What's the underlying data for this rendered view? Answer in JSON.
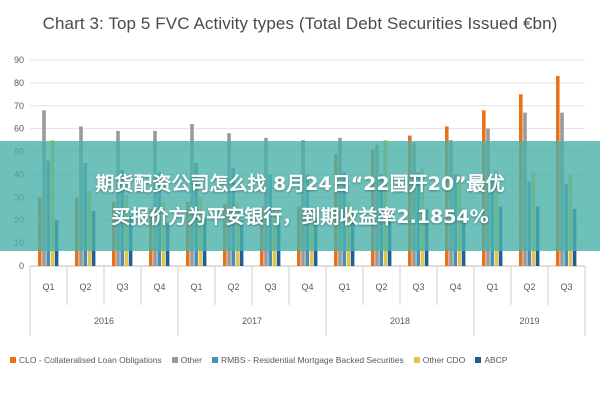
{
  "chart_data": {
    "type": "bar",
    "title": "Chart 3: Top 5 FVC Activity types (Total Debt Securities Issued €bn)",
    "ylim": [
      0,
      90
    ],
    "yticks": [
      0,
      10,
      20,
      30,
      40,
      50,
      60,
      70,
      80,
      90
    ],
    "grid": true,
    "legend_position": "bottom",
    "categories": [
      "Q1",
      "Q2",
      "Q3",
      "Q4",
      "Q1",
      "Q2",
      "Q3",
      "Q4",
      "Q1",
      "Q2",
      "Q3",
      "Q4",
      "Q1",
      "Q2",
      "Q3"
    ],
    "years": [
      {
        "label": "2016",
        "count": 4
      },
      {
        "label": "2017",
        "count": 4
      },
      {
        "label": "2018",
        "count": 4
      },
      {
        "label": "2019",
        "count": 3
      }
    ],
    "series": [
      {
        "name": "CLO - Collateralised Loan Obligations",
        "color": "#e8711c",
        "values": [
          30,
          30,
          28,
          25,
          28,
          27,
          26,
          26,
          49,
          51,
          57,
          61,
          68,
          75,
          83
        ]
      },
      {
        "name": "Other",
        "color": "#9a9a9a",
        "values": [
          68,
          61,
          59,
          59,
          62,
          58,
          56,
          55,
          56,
          53,
          54,
          55,
          60,
          67,
          67
        ]
      },
      {
        "name": "RMBS - Residential Mortgage Backed Securities",
        "color": "#4a8fb3",
        "values": [
          46,
          45,
          42,
          41,
          45,
          43,
          40,
          40,
          41,
          40,
          41,
          40,
          38,
          37,
          36
        ]
      },
      {
        "name": "Other CDO",
        "color": "#e3c54d",
        "values": [
          55,
          33,
          31,
          28,
          30,
          27,
          26,
          26,
          28,
          55,
          43,
          40,
          42,
          41,
          40
        ]
      },
      {
        "name": "ABCP",
        "color": "#1f5f95",
        "values": [
          20,
          24,
          22,
          19,
          21,
          20,
          19,
          21,
          23,
          24,
          25,
          25,
          26,
          26,
          25
        ]
      }
    ]
  },
  "overlay": {
    "line1": "期货配资公司怎么找 8月24日“22国开20”最优",
    "line2": "买报价方为平安银行，到期收益率2.1854%"
  }
}
